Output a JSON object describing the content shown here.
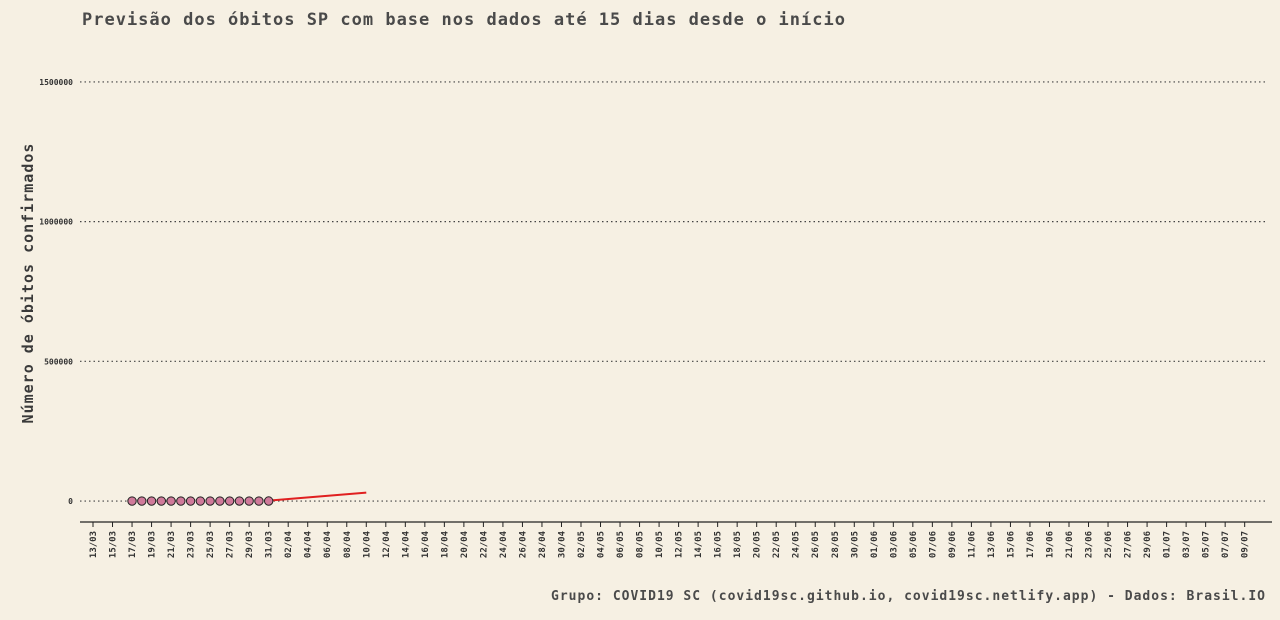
{
  "chart_data": {
    "type": "line",
    "title": "Previsão dos óbitos SP com base nos dados até 15 dias desde o início",
    "xlabel": "",
    "ylabel": "Número de óbitos confirmados",
    "caption": "Grupo: COVID19 SC (covid19sc.github.io, covid19sc.netlify.app)   -   Dados: Brasil.IO",
    "ylim": [
      -75000,
      1650000
    ],
    "yticks": [
      0,
      500000,
      1000000,
      1500000
    ],
    "ytick_labels": [
      "0",
      "500000",
      "1000000",
      "1500000"
    ],
    "grid": "horizontal dotted",
    "x_ticks": [
      "13/03",
      "15/03",
      "17/03",
      "19/03",
      "21/03",
      "23/03",
      "25/03",
      "27/03",
      "29/03",
      "31/03",
      "02/04",
      "04/04",
      "06/04",
      "08/04",
      "10/04",
      "12/04",
      "14/04",
      "16/04",
      "18/04",
      "20/04",
      "22/04",
      "24/04",
      "26/04",
      "28/04",
      "30/04",
      "02/05",
      "04/05",
      "06/05",
      "08/05",
      "10/05",
      "12/05",
      "14/05",
      "16/05",
      "18/05",
      "20/05",
      "22/05",
      "24/05",
      "26/05",
      "28/05",
      "30/05",
      "01/06",
      "03/06",
      "05/06",
      "07/06",
      "09/06",
      "11/06",
      "13/06",
      "15/06",
      "17/06",
      "19/06",
      "21/06",
      "23/06",
      "25/06",
      "27/06",
      "29/06",
      "01/07",
      "03/07",
      "05/07",
      "07/07",
      "09/07"
    ],
    "series": [
      {
        "kind": "observed",
        "color": "#d07a9a",
        "x": [
          "17/03",
          "18/03",
          "19/03",
          "20/03",
          "21/03",
          "22/03",
          "23/03",
          "24/03",
          "25/03",
          "26/03",
          "27/03",
          "28/03",
          "29/03",
          "30/03",
          "31/03"
        ],
        "y": [
          1,
          2,
          4,
          7,
          9,
          15,
          22,
          30,
          40,
          48,
          58,
          68,
          84,
          98,
          113
        ]
      },
      {
        "kind": "forecast",
        "color": "#e02020",
        "x": [
          "31/03",
          "10/04"
        ],
        "y": [
          1500,
          30000
        ]
      }
    ]
  }
}
